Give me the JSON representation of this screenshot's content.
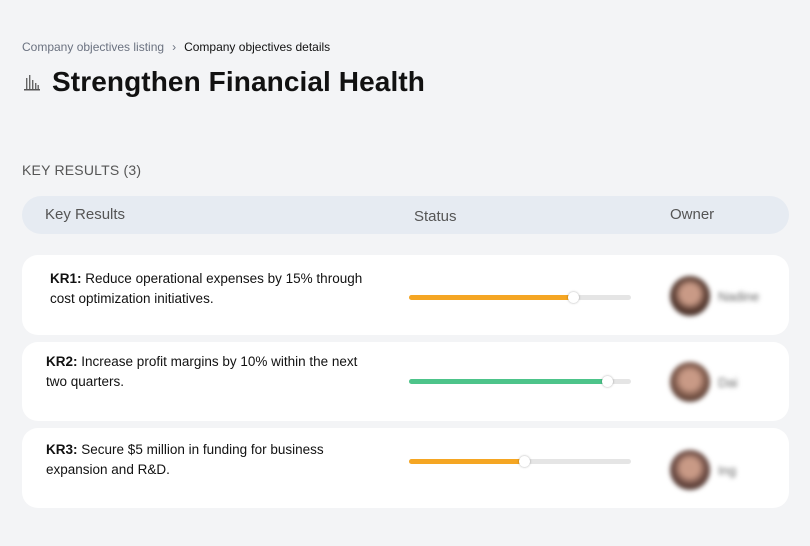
{
  "breadcrumb": {
    "parent": "Company objectives listing",
    "separator": "›",
    "current": "Company objectives details"
  },
  "objective": {
    "title": "Strengthen Financial Health",
    "icon": "bank-building-icon"
  },
  "key_results_section": {
    "title": "KEY RESULTS (3)"
  },
  "table_headers": {
    "key_results": "Key Results",
    "status": "Status",
    "owner": "Owner"
  },
  "key_results": [
    {
      "code": "KR1:",
      "text": "Reduce operational expenses by 15% through cost optimization initiatives.",
      "progress": 0.74,
      "progress_color": "#f5a623",
      "owner": "Nadine",
      "avatar_color": "#5a3d33"
    },
    {
      "code": "KR2:",
      "text": "Increase profit margins by 10% within the next two quarters.",
      "progress": 0.89,
      "progress_color": "#4dc48a",
      "owner": "Dai",
      "avatar_color": "#7a5648"
    },
    {
      "code": "KR3:",
      "text": "Secure $5 million in funding for business expansion and R&D.",
      "progress": 0.52,
      "progress_color": "#f5a623",
      "owner": "Ing",
      "avatar_color": "#6b4a42"
    }
  ]
}
